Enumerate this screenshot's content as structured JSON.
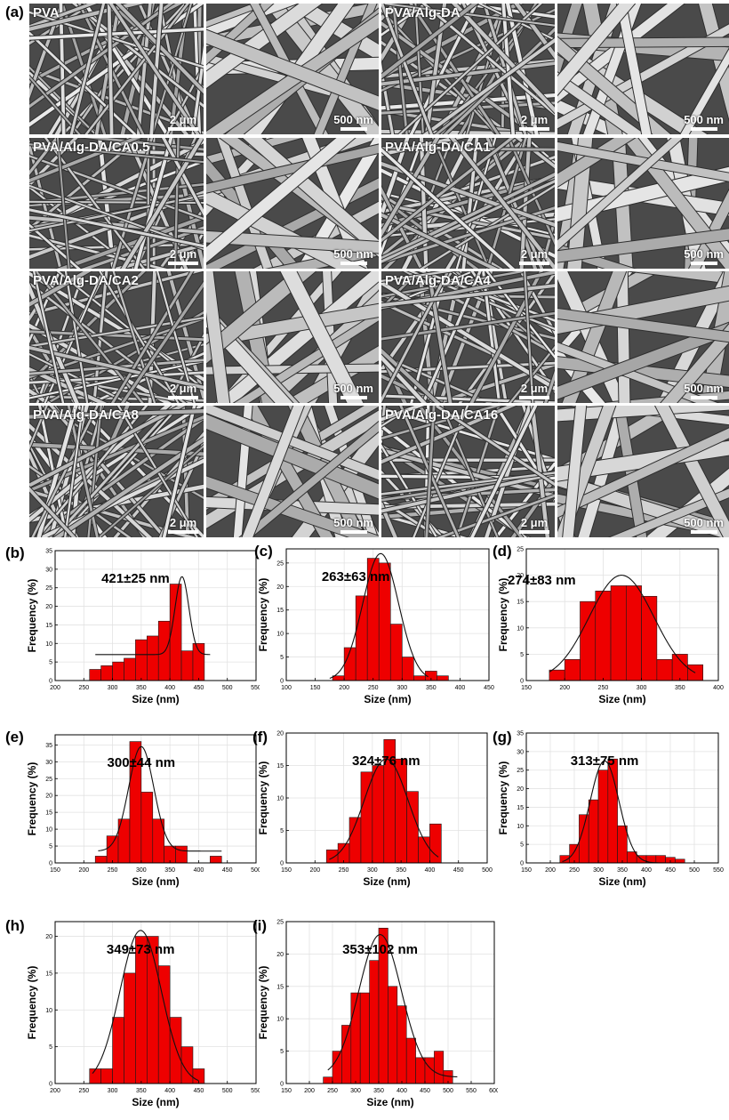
{
  "panel_a": {
    "letter": "(a)",
    "samples": [
      {
        "label": "PVA",
        "scale_low": "2 μm",
        "scale_high": "500 nm"
      },
      {
        "label": "PVA/Alg-DA",
        "scale_low": "2 μm",
        "scale_high": "500 nm"
      },
      {
        "label": "PVA/Alg-DA/CA0.5",
        "scale_low": "2 μm",
        "scale_high": "500 nm"
      },
      {
        "label": "PVA/Alg-DA/CA1",
        "scale_low": "2 μm",
        "scale_high": "500 nm"
      },
      {
        "label": "PVA/Alg-DA/CA2",
        "scale_low": "2 μm",
        "scale_high": "500 nm"
      },
      {
        "label": "PVA/Alg-DA/CA4",
        "scale_low": "2 μm",
        "scale_high": "500 nm"
      },
      {
        "label": "PVA/Alg-DA/CA8",
        "scale_low": "2 μm",
        "scale_high": "500 nm"
      },
      {
        "label": "PVA/Alg-DA/CA16",
        "scale_low": "2 μm",
        "scale_high": "500 nm"
      }
    ]
  },
  "chart_data": [
    {
      "panel": "(b)",
      "type": "bar",
      "annotation": "421±25 nm",
      "xlabel": "Size (nm)",
      "ylabel": "Frequency (%)",
      "xlim": [
        200,
        550
      ],
      "ylim": [
        0,
        35
      ],
      "xticks": [
        200,
        250,
        300,
        350,
        400,
        450,
        500,
        550
      ],
      "yticks": [
        0,
        5,
        10,
        15,
        20,
        25,
        30,
        35
      ],
      "bin_width": 20,
      "bins": [
        {
          "x": 270,
          "y": 3
        },
        {
          "x": 290,
          "y": 4
        },
        {
          "x": 310,
          "y": 5
        },
        {
          "x": 330,
          "y": 6
        },
        {
          "x": 350,
          "y": 11
        },
        {
          "x": 370,
          "y": 12
        },
        {
          "x": 390,
          "y": 16
        },
        {
          "x": 410,
          "y": 26
        },
        {
          "x": 430,
          "y": 8
        },
        {
          "x": 450,
          "y": 10
        }
      ],
      "fit": {
        "mean": 421,
        "sigma": 12,
        "amp": 21,
        "baseline": 7,
        "from": 270,
        "to": 470
      }
    },
    {
      "panel": "(c)",
      "type": "bar",
      "annotation": "263±63 nm",
      "xlabel": "Size (nm)",
      "ylabel": "Frequency (%)",
      "xlim": [
        100,
        450
      ],
      "ylim": [
        0,
        28
      ],
      "xticks": [
        100,
        150,
        200,
        250,
        300,
        350,
        400,
        450
      ],
      "yticks": [
        0,
        5,
        10,
        15,
        20,
        25
      ],
      "bin_width": 20,
      "bins": [
        {
          "x": 190,
          "y": 1
        },
        {
          "x": 210,
          "y": 7
        },
        {
          "x": 230,
          "y": 18
        },
        {
          "x": 250,
          "y": 26
        },
        {
          "x": 270,
          "y": 25
        },
        {
          "x": 290,
          "y": 12
        },
        {
          "x": 310,
          "y": 5
        },
        {
          "x": 330,
          "y": 1
        },
        {
          "x": 350,
          "y": 2
        },
        {
          "x": 370,
          "y": 1
        }
      ],
      "fit": {
        "mean": 263,
        "sigma": 31,
        "amp": 27,
        "baseline": 0,
        "from": 175,
        "to": 345
      }
    },
    {
      "panel": "(d)",
      "type": "bar",
      "annotation": "274±83 nm",
      "xlabel": "Size (nm)",
      "ylabel": "Frequency (%)",
      "xlim": [
        150,
        400
      ],
      "ylim": [
        0,
        25
      ],
      "xticks": [
        150,
        200,
        250,
        300,
        350,
        400
      ],
      "yticks": [
        0,
        5,
        10,
        15,
        20,
        25
      ],
      "bin_width": 20,
      "bins": [
        {
          "x": 190,
          "y": 2
        },
        {
          "x": 210,
          "y": 4
        },
        {
          "x": 230,
          "y": 15
        },
        {
          "x": 250,
          "y": 17
        },
        {
          "x": 270,
          "y": 18
        },
        {
          "x": 290,
          "y": 18
        },
        {
          "x": 310,
          "y": 16
        },
        {
          "x": 330,
          "y": 4
        },
        {
          "x": 350,
          "y": 5
        },
        {
          "x": 370,
          "y": 3
        }
      ],
      "fit": {
        "mean": 274,
        "sigma": 42,
        "amp": 20,
        "baseline": 0,
        "from": 180,
        "to": 370
      }
    },
    {
      "panel": "(e)",
      "type": "bar",
      "annotation": "300±44 nm",
      "xlabel": "Size (nm)",
      "ylabel": "Frequency (%)",
      "xlim": [
        150,
        500
      ],
      "ylim": [
        0,
        38
      ],
      "xticks": [
        150,
        200,
        250,
        300,
        350,
        400,
        450,
        500
      ],
      "yticks": [
        0,
        5,
        10,
        15,
        20,
        25,
        30,
        35
      ],
      "bin_width": 20,
      "bins": [
        {
          "x": 230,
          "y": 2
        },
        {
          "x": 250,
          "y": 8
        },
        {
          "x": 270,
          "y": 13
        },
        {
          "x": 290,
          "y": 36
        },
        {
          "x": 310,
          "y": 21
        },
        {
          "x": 330,
          "y": 13
        },
        {
          "x": 350,
          "y": 5
        },
        {
          "x": 370,
          "y": 5
        },
        {
          "x": 430,
          "y": 2
        }
      ],
      "fit": {
        "mean": 300,
        "sigma": 22,
        "amp": 31,
        "baseline": 3.5,
        "from": 225,
        "to": 440
      }
    },
    {
      "panel": "(f)",
      "type": "bar",
      "annotation": "324±76 nm",
      "xlabel": "Size (nm)",
      "ylabel": "Frequency (%)",
      "xlim": [
        150,
        500
      ],
      "ylim": [
        0,
        20
      ],
      "xticks": [
        150,
        200,
        250,
        300,
        350,
        400,
        450,
        500
      ],
      "yticks": [
        0,
        5,
        10,
        15,
        20
      ],
      "bin_width": 20,
      "bins": [
        {
          "x": 230,
          "y": 2
        },
        {
          "x": 250,
          "y": 3
        },
        {
          "x": 270,
          "y": 7
        },
        {
          "x": 290,
          "y": 14
        },
        {
          "x": 310,
          "y": 15
        },
        {
          "x": 330,
          "y": 19
        },
        {
          "x": 350,
          "y": 16
        },
        {
          "x": 370,
          "y": 11
        },
        {
          "x": 390,
          "y": 4
        },
        {
          "x": 410,
          "y": 6
        }
      ],
      "fit": {
        "mean": 324,
        "sigma": 38,
        "amp": 16,
        "baseline": 0,
        "from": 225,
        "to": 415
      }
    },
    {
      "panel": "(g)",
      "type": "bar",
      "annotation": "313±75 nm",
      "xlabel": "Size (nm)",
      "ylabel": "Frequency (%)",
      "xlim": [
        150,
        550
      ],
      "ylim": [
        0,
        35
      ],
      "xticks": [
        150,
        200,
        250,
        300,
        350,
        400,
        450,
        500,
        550
      ],
      "yticks": [
        0,
        5,
        10,
        15,
        20,
        25,
        30,
        35
      ],
      "bin_width": 20,
      "bins": [
        {
          "x": 230,
          "y": 2
        },
        {
          "x": 250,
          "y": 5
        },
        {
          "x": 270,
          "y": 13
        },
        {
          "x": 290,
          "y": 17
        },
        {
          "x": 310,
          "y": 25
        },
        {
          "x": 330,
          "y": 28
        },
        {
          "x": 350,
          "y": 10
        },
        {
          "x": 370,
          "y": 3
        },
        {
          "x": 390,
          "y": 2
        },
        {
          "x": 410,
          "y": 2
        },
        {
          "x": 430,
          "y": 2
        },
        {
          "x": 450,
          "y": 1.5
        },
        {
          "x": 470,
          "y": 1
        }
      ],
      "fit": {
        "mean": 313,
        "sigma": 30,
        "amp": 27.5,
        "baseline": 0,
        "from": 225,
        "to": 470
      }
    },
    {
      "panel": "(h)",
      "type": "bar",
      "annotation": "349±73 nm",
      "xlabel": "Size (nm)",
      "ylabel": "Frequency (%)",
      "xlim": [
        200,
        550
      ],
      "ylim": [
        0,
        22
      ],
      "xticks": [
        200,
        250,
        300,
        350,
        400,
        450,
        500,
        550
      ],
      "yticks": [
        0,
        5,
        10,
        15,
        20
      ],
      "bin_width": 20,
      "bins": [
        {
          "x": 270,
          "y": 2
        },
        {
          "x": 290,
          "y": 2
        },
        {
          "x": 310,
          "y": 9
        },
        {
          "x": 330,
          "y": 15
        },
        {
          "x": 350,
          "y": 20
        },
        {
          "x": 370,
          "y": 20
        },
        {
          "x": 390,
          "y": 16
        },
        {
          "x": 410,
          "y": 9
        },
        {
          "x": 430,
          "y": 5
        },
        {
          "x": 450,
          "y": 2
        }
      ],
      "fit": {
        "mean": 349,
        "sigma": 36,
        "amp": 20.8,
        "baseline": 0,
        "from": 265,
        "to": 450
      }
    },
    {
      "panel": "(i)",
      "type": "bar",
      "annotation": "353±102 nm",
      "xlabel": "Size (nm)",
      "ylabel": "Frequency (%)",
      "xlim": [
        150,
        600
      ],
      "ylim": [
        0,
        25
      ],
      "xticks": [
        150,
        200,
        250,
        300,
        350,
        400,
        450,
        500,
        550,
        600
      ],
      "yticks": [
        0,
        5,
        10,
        15,
        20,
        25
      ],
      "bin_width": 20,
      "bins": [
        {
          "x": 240,
          "y": 1
        },
        {
          "x": 260,
          "y": 5
        },
        {
          "x": 280,
          "y": 9
        },
        {
          "x": 300,
          "y": 14
        },
        {
          "x": 320,
          "y": 14
        },
        {
          "x": 340,
          "y": 19
        },
        {
          "x": 360,
          "y": 24
        },
        {
          "x": 380,
          "y": 15
        },
        {
          "x": 400,
          "y": 12
        },
        {
          "x": 420,
          "y": 7
        },
        {
          "x": 440,
          "y": 4
        },
        {
          "x": 460,
          "y": 4
        },
        {
          "x": 480,
          "y": 5
        },
        {
          "x": 500,
          "y": 2
        }
      ],
      "fit": {
        "mean": 353,
        "sigma": 46,
        "amp": 22,
        "baseline": 1,
        "from": 240,
        "to": 520
      }
    }
  ]
}
